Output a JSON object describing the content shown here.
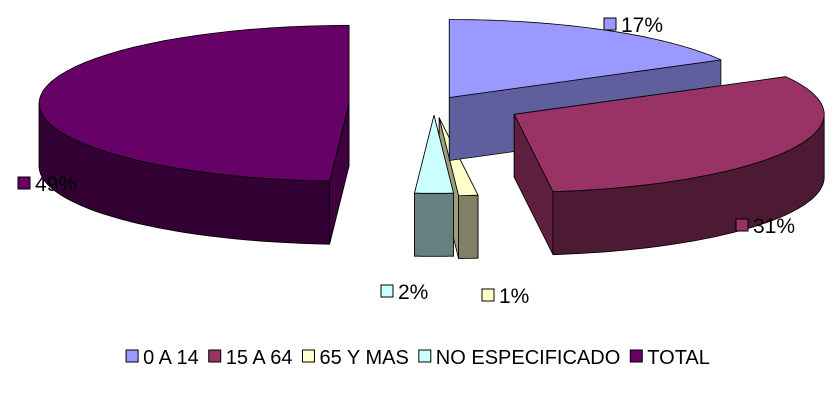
{
  "chart_data": {
    "type": "pie",
    "style": "3d-exploded",
    "categories": [
      "0 A 14",
      "15 A 64",
      "65 Y MAS",
      "NO ESPECIFICADO",
      "TOTAL"
    ],
    "values": [
      17,
      31,
      1,
      2,
      49
    ],
    "data_labels": [
      "17%",
      "31%",
      "1%",
      "2%",
      "49%"
    ],
    "colors": [
      "#9999FF",
      "#993366",
      "#FFFFCC",
      "#CCFFFF",
      "#660066"
    ],
    "legend_position": "bottom"
  }
}
